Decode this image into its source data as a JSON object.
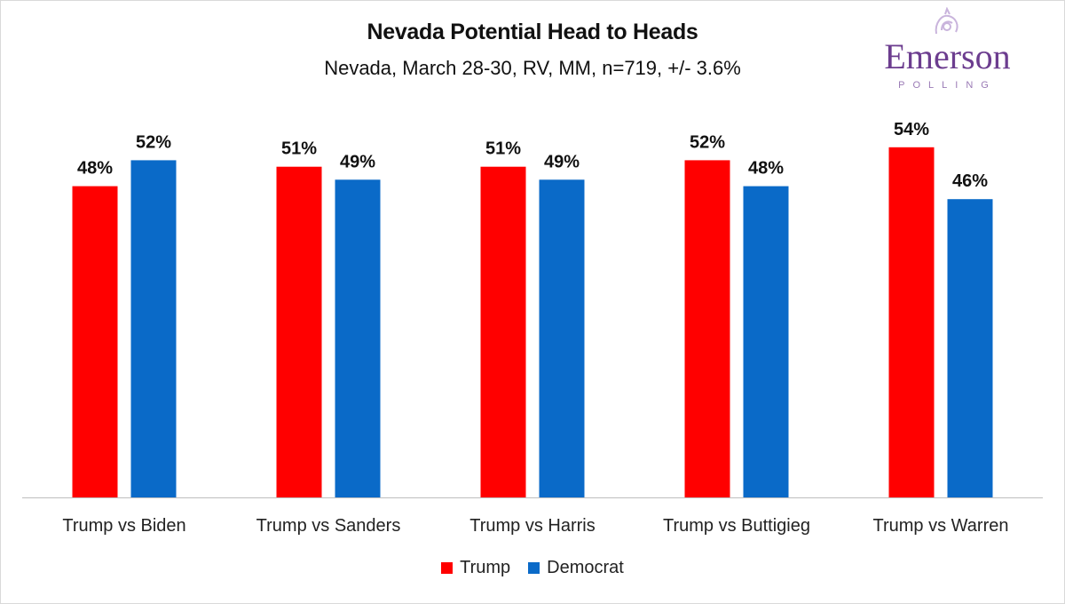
{
  "chart_data": {
    "type": "bar",
    "title": "Nevada Potential Head to Heads",
    "subtitle": "Nevada, March 28-30, RV, MM, n=719, +/- 3.6%",
    "categories": [
      "Trump vs Biden",
      "Trump vs Sanders",
      "Trump vs Harris",
      "Trump vs Buttigieg",
      "Trump vs Warren"
    ],
    "series": [
      {
        "name": "Trump",
        "color": "#ff0000",
        "values": [
          48,
          51,
          51,
          52,
          54
        ],
        "labels": [
          "48%",
          "51%",
          "51%",
          "52%",
          "54%"
        ]
      },
      {
        "name": "Democrat",
        "color": "#0a6ac8",
        "values": [
          52,
          49,
          49,
          48,
          46
        ],
        "labels": [
          "52%",
          "49%",
          "49%",
          "48%",
          "46%"
        ]
      }
    ],
    "xlabel": "",
    "ylabel": "",
    "ylim": [
      0,
      60
    ],
    "grid": false,
    "legend": "bottom-center"
  },
  "logo": {
    "word": "Emerson",
    "subtitle": "POLLING",
    "color": "#6c3d8f"
  }
}
